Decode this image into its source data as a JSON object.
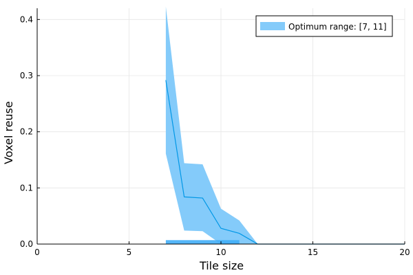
{
  "chart_data": {
    "type": "line",
    "xlabel": "Tile size",
    "ylabel": "Voxel reuse",
    "xlim": [
      0,
      20
    ],
    "ylim": [
      0,
      0.42
    ],
    "xticks": [
      0,
      5,
      10,
      15,
      20
    ],
    "yticks": [
      0.0,
      0.1,
      0.2,
      0.3,
      0.4
    ],
    "xtick_labels": [
      "0",
      "5",
      "10",
      "15",
      "20"
    ],
    "ytick_labels": [
      "0.0",
      "0.1",
      "0.2",
      "0.3",
      "0.4"
    ],
    "grid": true,
    "legend_position": "top-right",
    "colors": {
      "series": "#0097e6",
      "band": "#84cbfa",
      "strip": "#41aef7"
    },
    "series": [
      {
        "name": "Optimum range: [7, 11]",
        "x": [
          7,
          8,
          9,
          10,
          11,
          12,
          13,
          14,
          15,
          16,
          17,
          18,
          19,
          20
        ],
        "y": [
          0.292,
          0.084,
          0.082,
          0.028,
          0.019,
          0.0,
          0.0,
          0.0,
          0.0,
          0.0,
          0.0,
          0.0,
          0.0,
          0.0
        ],
        "lower": [
          0.161,
          0.024,
          0.023,
          0.0,
          0.0,
          0.0,
          0.0,
          0.0,
          0.0,
          0.0,
          0.0,
          0.0,
          0.0,
          0.0
        ],
        "upper": [
          0.423,
          0.144,
          0.142,
          0.063,
          0.042,
          0.0,
          0.0,
          0.0,
          0.0,
          0.0,
          0.0,
          0.0,
          0.0,
          0.0
        ]
      }
    ],
    "optimum_range": {
      "xmin": 7,
      "xmax": 11,
      "height": 0.007
    }
  }
}
